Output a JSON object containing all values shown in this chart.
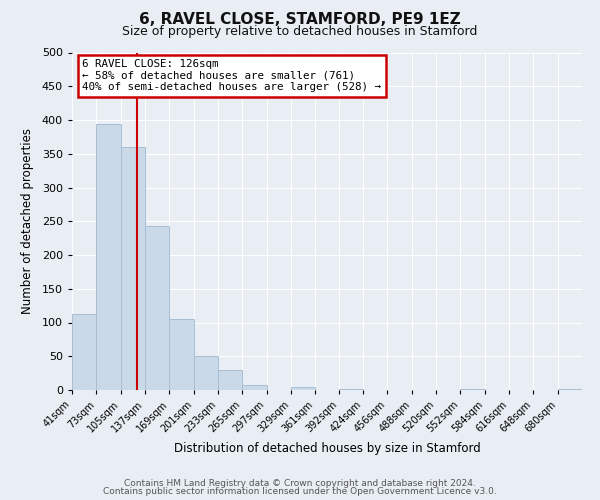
{
  "title": "6, RAVEL CLOSE, STAMFORD, PE9 1EZ",
  "subtitle": "Size of property relative to detached houses in Stamford",
  "xlabel": "Distribution of detached houses by size in Stamford",
  "ylabel": "Number of detached properties",
  "bar_color": "#c9d9e8",
  "bar_edgecolor": "#a8bfd4",
  "bin_labels": [
    "41sqm",
    "73sqm",
    "105sqm",
    "137sqm",
    "169sqm",
    "201sqm",
    "233sqm",
    "265sqm",
    "297sqm",
    "329sqm",
    "361sqm",
    "392sqm",
    "424sqm",
    "456sqm",
    "488sqm",
    "520sqm",
    "552sqm",
    "584sqm",
    "616sqm",
    "648sqm",
    "680sqm"
  ],
  "bar_heights": [
    113,
    394,
    360,
    243,
    105,
    50,
    30,
    8,
    0,
    5,
    0,
    2,
    0,
    0,
    0,
    0,
    2,
    0,
    0,
    0,
    2
  ],
  "property_line_x": 126,
  "bin_edges_numeric": [
    41,
    73,
    105,
    137,
    169,
    201,
    233,
    265,
    297,
    329,
    361,
    392,
    424,
    456,
    488,
    520,
    552,
    584,
    616,
    648,
    680
  ],
  "bin_width": 32,
  "ylim": [
    0,
    500
  ],
  "annotation_title": "6 RAVEL CLOSE: 126sqm",
  "annotation_line1": "← 58% of detached houses are smaller (761)",
  "annotation_line2": "40% of semi-detached houses are larger (528) →",
  "annotation_box_facecolor": "#ffffff",
  "annotation_box_edgecolor": "#cc0000",
  "vline_color": "#cc0000",
  "footer_line1": "Contains HM Land Registry data © Crown copyright and database right 2024.",
  "footer_line2": "Contains public sector information licensed under the Open Government Licence v3.0.",
  "fig_facecolor": "#e8eef4",
  "axes_facecolor": "#e8eef4",
  "grid_color": "#ffffff",
  "yticks": [
    0,
    50,
    100,
    150,
    200,
    250,
    300,
    350,
    400,
    450,
    500
  ]
}
